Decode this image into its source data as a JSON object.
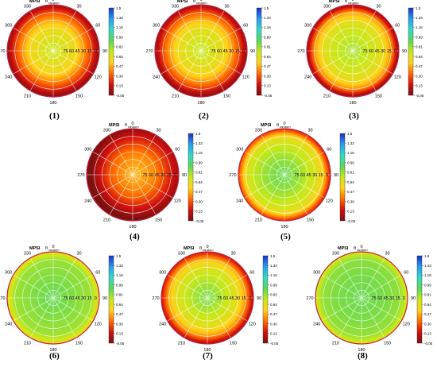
{
  "figure": {
    "panel_title": "MPSI",
    "theta_symbol": "θ",
    "random_label": "random",
    "azimuth_labels": [
      "0",
      "30",
      "60",
      "90",
      "120",
      "150",
      "180",
      "210",
      "240",
      "270",
      "300",
      "330"
    ],
    "radial_labels": [
      "75",
      "60",
      "45",
      "30",
      "15",
      "0"
    ]
  },
  "colorbar": {
    "colors": [
      "#7a1010",
      "#d01010",
      "#ff6a00",
      "#ffd21a",
      "#c8e81a",
      "#5ad75a",
      "#35d9c8",
      "#2a9cf0",
      "#1830c8"
    ]
  },
  "chart_data": [
    {
      "type": "heatmap",
      "projection": "polar",
      "caption": "(1)",
      "colorbar_ticks": [
        "1.5",
        "1.33",
        "1.16",
        "0.99",
        "0.82",
        "0.65",
        "0.47",
        "0.30",
        "0.13",
        "-0.05"
      ],
      "clim": [
        -0.05,
        1.5
      ],
      "radial_profile": {
        "zenith_deg": [
          0,
          15,
          30,
          45,
          60,
          75,
          90
        ],
        "mpsi": [
          0.72,
          0.68,
          0.62,
          0.58,
          0.42,
          0.25,
          0.0
        ]
      },
      "azimuth_variation": 0.04,
      "asymmetry_dir_deg": 0
    },
    {
      "type": "heatmap",
      "projection": "polar",
      "caption": "(2)",
      "colorbar_ticks": [
        "1.5",
        "1.33",
        "1.16",
        "0.99",
        "0.81",
        "0.64",
        "0.47",
        "0.30",
        "0.13",
        "-0.05"
      ],
      "clim": [
        -0.05,
        1.5
      ],
      "radial_profile": {
        "zenith_deg": [
          0,
          15,
          30,
          45,
          60,
          75,
          90
        ],
        "mpsi": [
          0.72,
          0.7,
          0.64,
          0.6,
          0.45,
          0.27,
          0.0
        ]
      },
      "azimuth_variation": 0.04,
      "asymmetry_dir_deg": 0
    },
    {
      "type": "heatmap",
      "projection": "polar",
      "caption": "(3)",
      "colorbar_ticks": [
        "1.5",
        "1.33",
        "1.16",
        "0.99",
        "0.81",
        "0.64",
        "0.47",
        "0.30",
        "0.13",
        "-0.05"
      ],
      "clim": [
        -0.05,
        1.5
      ],
      "radial_profile": {
        "zenith_deg": [
          0,
          15,
          30,
          45,
          60,
          75,
          90
        ],
        "mpsi": [
          0.78,
          0.76,
          0.72,
          0.68,
          0.6,
          0.42,
          0.0
        ]
      },
      "azimuth_variation": 0.02,
      "asymmetry_dir_deg": 0
    },
    {
      "type": "heatmap",
      "projection": "polar",
      "caption": "(4)",
      "colorbar_ticks": [
        "1.5",
        "1.33",
        "1.16",
        "0.99",
        "0.81",
        "0.64",
        "0.47",
        "0.30",
        "0.13",
        "-0.05"
      ],
      "clim": [
        -0.05,
        1.5
      ],
      "radial_profile": {
        "zenith_deg": [
          0,
          15,
          30,
          45,
          60,
          75,
          90
        ],
        "mpsi": [
          0.48,
          0.44,
          0.4,
          0.34,
          0.22,
          0.1,
          -0.05
        ]
      },
      "azimuth_variation": 0.1,
      "asymmetry_dir_deg": 60
    },
    {
      "type": "heatmap",
      "projection": "polar",
      "caption": "(5)",
      "colorbar_ticks": [
        "1.5",
        "1.33",
        "1.16",
        "0.99",
        "0.81",
        "0.64",
        "0.47",
        "0.30",
        "0.13",
        "-0.05"
      ],
      "clim": [
        -0.05,
        1.5
      ],
      "radial_profile": {
        "zenith_deg": [
          0,
          15,
          30,
          45,
          60,
          75,
          90
        ],
        "mpsi": [
          0.9,
          0.86,
          0.82,
          0.76,
          0.7,
          0.6,
          0.2
        ]
      },
      "azimuth_variation": 0.05,
      "asymmetry_dir_deg": 270
    },
    {
      "type": "heatmap",
      "projection": "polar",
      "caption": "(6)",
      "colorbar_ticks": [
        "1.5",
        "1.33",
        "1.16",
        "0.99",
        "0.81",
        "0.64",
        "0.47",
        "0.30",
        "0.13",
        "-0.05"
      ],
      "clim": [
        -0.05,
        1.5
      ],
      "radial_profile": {
        "zenith_deg": [
          0,
          15,
          30,
          45,
          60,
          75,
          90
        ],
        "mpsi": [
          0.9,
          0.88,
          0.86,
          0.84,
          0.82,
          0.8,
          0.62
        ]
      },
      "azimuth_variation": 0.01,
      "asymmetry_dir_deg": 0
    },
    {
      "type": "heatmap",
      "projection": "polar",
      "caption": "(7)",
      "colorbar_ticks": [
        "1.5",
        "1.33",
        "1.16",
        "0.99",
        "0.82",
        "0.64",
        "0.47",
        "0.30",
        "0.13",
        "-0.05"
      ],
      "clim": [
        -0.05,
        1.5
      ],
      "radial_profile": {
        "zenith_deg": [
          0,
          15,
          30,
          45,
          60,
          75,
          90
        ],
        "mpsi": [
          0.86,
          0.82,
          0.76,
          0.7,
          0.62,
          0.45,
          0.1
        ]
      },
      "azimuth_variation": 0.05,
      "asymmetry_dir_deg": 330
    },
    {
      "type": "heatmap",
      "projection": "polar",
      "caption": "(8)",
      "colorbar_ticks": [
        "1.5",
        "1.33",
        "1.16",
        "0.99",
        "0.81",
        "0.64",
        "0.47",
        "0.30",
        "0.13",
        "-0.05"
      ],
      "clim": [
        -0.05,
        1.5
      ],
      "radial_profile": {
        "zenith_deg": [
          0,
          15,
          30,
          45,
          60,
          75,
          90
        ],
        "mpsi": [
          0.9,
          0.88,
          0.87,
          0.86,
          0.84,
          0.82,
          0.68
        ]
      },
      "azimuth_variation": 0.01,
      "asymmetry_dir_deg": 0
    }
  ]
}
